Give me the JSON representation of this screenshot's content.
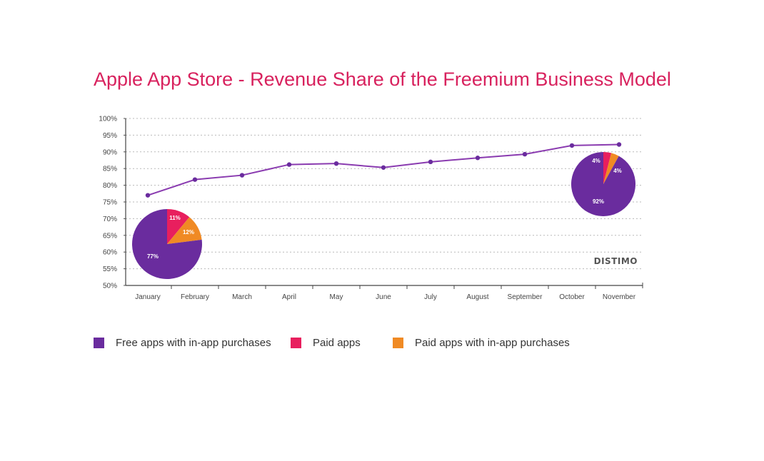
{
  "chart_data": {
    "type": "line",
    "title": "Apple App Store - Revenue Share of the Freemium Business Model",
    "categories": [
      "January",
      "February",
      "March",
      "April",
      "May",
      "June",
      "July",
      "August",
      "September",
      "October",
      "November"
    ],
    "series": [
      {
        "name": "Free apps with in-app purchases",
        "color": "#8a3bb0",
        "values": [
          77,
          81.7,
          83,
          86.2,
          86.5,
          85.3,
          87,
          88.2,
          89.3,
          91.9,
          92.2
        ]
      }
    ],
    "ylim": [
      50,
      100
    ],
    "y_ticks": [
      "50%",
      "55%",
      "60%",
      "65%",
      "70%",
      "75%",
      "80%",
      "85%",
      "90%",
      "95%",
      "100%"
    ],
    "grid": true,
    "watermark": "DISTIMO",
    "pies": [
      {
        "month": "January",
        "slices": [
          {
            "name": "Free apps with in-app purchases",
            "value": 77,
            "label": "77%",
            "color": "#6a2c9e"
          },
          {
            "name": "Paid apps",
            "value": 11,
            "label": "11%",
            "color": "#e81f5e"
          },
          {
            "name": "Paid apps with in-app purchases",
            "value": 12,
            "label": "12%",
            "color": "#f08a24"
          }
        ]
      },
      {
        "month": "November",
        "slices": [
          {
            "name": "Free apps with in-app purchases",
            "value": 92,
            "label": "92%",
            "color": "#6a2c9e"
          },
          {
            "name": "Paid apps",
            "value": 4,
            "label": "4%",
            "color": "#e81f5e"
          },
          {
            "name": "Paid apps with in-app purchases",
            "value": 4,
            "label": "4%",
            "color": "#f08a24"
          }
        ]
      }
    ],
    "legend": [
      {
        "label": "Free apps with in-app purchases",
        "color": "#6a2c9e"
      },
      {
        "label": "Paid apps",
        "color": "#e81f5e"
      },
      {
        "label": "Paid apps with in-app purchases",
        "color": "#f08a24"
      }
    ]
  }
}
